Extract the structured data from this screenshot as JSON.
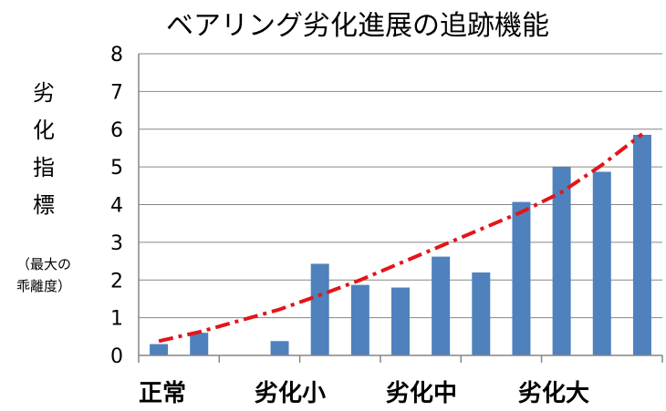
{
  "chart_data": {
    "type": "bar",
    "title": "ベアリング劣化進展の追跡機能",
    "ylabel": "劣化指標",
    "ylabel_unit_lines": [
      "（最大の",
      "乖離度）"
    ],
    "ylim": [
      0,
      8
    ],
    "yticks": [
      0,
      1,
      2,
      3,
      4,
      5,
      6,
      7,
      8
    ],
    "grid": true,
    "x_group_labels": [
      "正常",
      "劣化小",
      "劣化中",
      "劣化大"
    ],
    "values": [
      0.3,
      0.6,
      0.0,
      0.38,
      2.43,
      1.87,
      1.8,
      2.62,
      2.2,
      4.07,
      5.0,
      4.87,
      5.85
    ],
    "bar_color": "#4f81bd",
    "trend": {
      "style": "dash-dot",
      "color": "#e3151a",
      "values": [
        0.38,
        0.62,
        0.92,
        1.22,
        1.6,
        2.0,
        2.45,
        2.9,
        3.35,
        3.8,
        4.33,
        5.05,
        5.87
      ]
    }
  }
}
